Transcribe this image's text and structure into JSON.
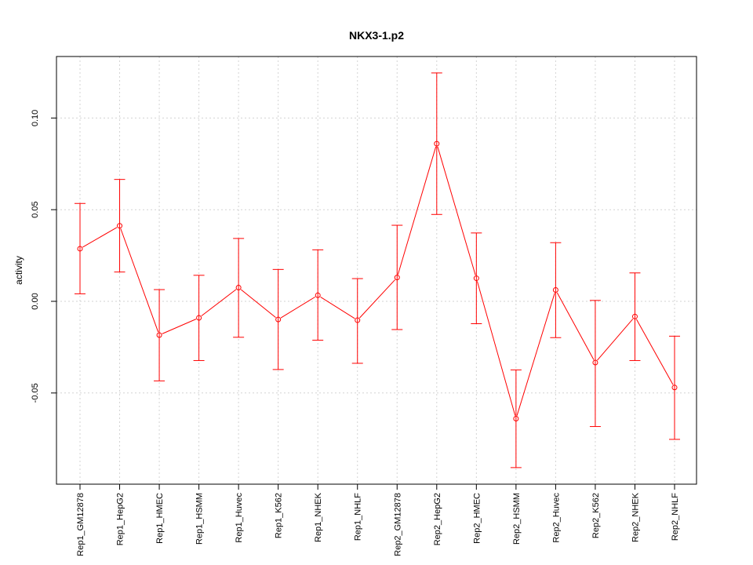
{
  "chart_data": {
    "type": "line",
    "title": "NKX3-1.p2",
    "xlabel": "",
    "ylabel": "activity",
    "ylim": [
      -0.1,
      0.13
    ],
    "yticks": [
      "-0.05",
      "0.00",
      "0.05",
      "0.10"
    ],
    "ytick_values": [
      -0.05,
      0.0,
      0.05,
      0.1
    ],
    "grid": true,
    "series_color": "#ff0000",
    "grid_color": "#d3d3d3",
    "categories": [
      "Rep1_GM12878",
      "Rep1_HepG2",
      "Rep1_HMEC",
      "Rep1_HSMM",
      "Rep1_Huvec",
      "Rep1_K562",
      "Rep1_NHEK",
      "Rep1_NHLF",
      "Rep2_GM12878",
      "Rep2_HepG2",
      "Rep2_HMEC",
      "Rep2_HSMM",
      "Rep2_Huvec",
      "Rep2_K562",
      "Rep2_NHEK",
      "Rep2_NHLF"
    ],
    "series": [
      {
        "values": [
          0.0287,
          0.0412,
          -0.0184,
          -0.009,
          0.0075,
          -0.0099,
          0.0033,
          -0.0103,
          0.013,
          0.086,
          0.0126,
          -0.064,
          0.0062,
          -0.0334,
          -0.0083,
          -0.047
        ],
        "lower": [
          0.0041,
          0.016,
          -0.0434,
          -0.0323,
          -0.0196,
          -0.0372,
          -0.0212,
          -0.0338,
          -0.0154,
          0.0474,
          -0.0122,
          -0.0907,
          -0.0198,
          -0.0683,
          -0.0323,
          -0.0753
        ],
        "upper": [
          0.0534,
          0.0665,
          0.0064,
          0.0142,
          0.0343,
          0.0174,
          0.0281,
          0.0124,
          0.0415,
          0.1246,
          0.0373,
          -0.0374,
          0.032,
          0.0005,
          0.0155,
          -0.019
        ]
      }
    ]
  }
}
